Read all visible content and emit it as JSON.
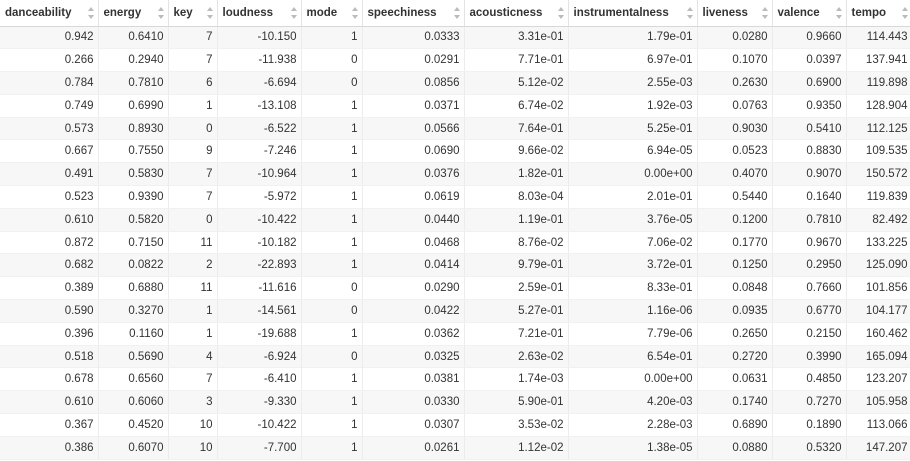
{
  "columns": [
    "danceability",
    "energy",
    "key",
    "loudness",
    "mode",
    "speechiness",
    "acousticness",
    "instrumentalness",
    "liveness",
    "valence",
    "tempo"
  ],
  "rows": [
    [
      "0.942",
      "0.6410",
      "7",
      "-10.150",
      "1",
      "0.0333",
      "3.31e-01",
      "1.79e-01",
      "0.0280",
      "0.9660",
      "114.443"
    ],
    [
      "0.266",
      "0.2940",
      "7",
      "-11.938",
      "0",
      "0.0291",
      "7.71e-01",
      "6.97e-01",
      "0.1070",
      "0.0397",
      "137.941"
    ],
    [
      "0.784",
      "0.7810",
      "6",
      "-6.694",
      "0",
      "0.0856",
      "5.12e-02",
      "2.55e-03",
      "0.2630",
      "0.6900",
      "119.898"
    ],
    [
      "0.749",
      "0.6990",
      "1",
      "-13.108",
      "1",
      "0.0371",
      "6.74e-02",
      "1.92e-03",
      "0.0763",
      "0.9350",
      "128.904"
    ],
    [
      "0.573",
      "0.8930",
      "0",
      "-6.522",
      "1",
      "0.0566",
      "7.64e-01",
      "5.25e-01",
      "0.9030",
      "0.5410",
      "112.125"
    ],
    [
      "0.667",
      "0.7550",
      "9",
      "-7.246",
      "1",
      "0.0690",
      "9.66e-02",
      "6.94e-05",
      "0.0523",
      "0.8830",
      "109.535"
    ],
    [
      "0.491",
      "0.5830",
      "7",
      "-10.964",
      "1",
      "0.0376",
      "1.82e-01",
      "0.00e+00",
      "0.4070",
      "0.9070",
      "150.572"
    ],
    [
      "0.523",
      "0.9390",
      "7",
      "-5.972",
      "1",
      "0.0619",
      "8.03e-04",
      "2.01e-01",
      "0.5440",
      "0.1640",
      "119.839"
    ],
    [
      "0.610",
      "0.5820",
      "0",
      "-10.422",
      "1",
      "0.0440",
      "1.19e-01",
      "3.76e-05",
      "0.1200",
      "0.7810",
      "82.492"
    ],
    [
      "0.872",
      "0.7150",
      "11",
      "-10.182",
      "1",
      "0.0468",
      "8.76e-02",
      "7.06e-02",
      "0.1770",
      "0.9670",
      "133.225"
    ],
    [
      "0.682",
      "0.0822",
      "2",
      "-22.893",
      "1",
      "0.0414",
      "9.79e-01",
      "3.72e-01",
      "0.1250",
      "0.2950",
      "125.090"
    ],
    [
      "0.389",
      "0.6880",
      "11",
      "-11.616",
      "0",
      "0.0290",
      "2.59e-01",
      "8.33e-01",
      "0.0848",
      "0.7660",
      "101.856"
    ],
    [
      "0.590",
      "0.3270",
      "1",
      "-14.561",
      "0",
      "0.0422",
      "5.27e-01",
      "1.16e-06",
      "0.0935",
      "0.6770",
      "104.177"
    ],
    [
      "0.396",
      "0.1160",
      "1",
      "-19.688",
      "1",
      "0.0362",
      "7.21e-01",
      "7.79e-06",
      "0.2650",
      "0.2150",
      "160.462"
    ],
    [
      "0.518",
      "0.5690",
      "4",
      "-6.924",
      "0",
      "0.0325",
      "2.63e-02",
      "6.54e-01",
      "0.2720",
      "0.3990",
      "165.094"
    ],
    [
      "0.678",
      "0.6560",
      "7",
      "-6.410",
      "1",
      "0.0381",
      "1.74e-03",
      "0.00e+00",
      "0.0631",
      "0.4850",
      "123.207"
    ],
    [
      "0.610",
      "0.6060",
      "3",
      "-9.330",
      "1",
      "0.0330",
      "5.90e-01",
      "4.20e-03",
      "0.1740",
      "0.7270",
      "105.958"
    ],
    [
      "0.367",
      "0.4520",
      "10",
      "-10.422",
      "1",
      "0.0307",
      "3.53e-02",
      "2.28e-03",
      "0.6890",
      "0.1890",
      "113.066"
    ],
    [
      "0.386",
      "0.6070",
      "10",
      "-7.700",
      "1",
      "0.0261",
      "1.12e-02",
      "1.38e-05",
      "0.0880",
      "0.5320",
      "147.207"
    ]
  ],
  "icons": {
    "sort": "sort-arrows-icon"
  },
  "colors": {
    "row_stripe": "#f7f7f7",
    "grid_line": "#e3e3e3",
    "text": "#333333",
    "sort_icon": "#bbbbbb"
  }
}
